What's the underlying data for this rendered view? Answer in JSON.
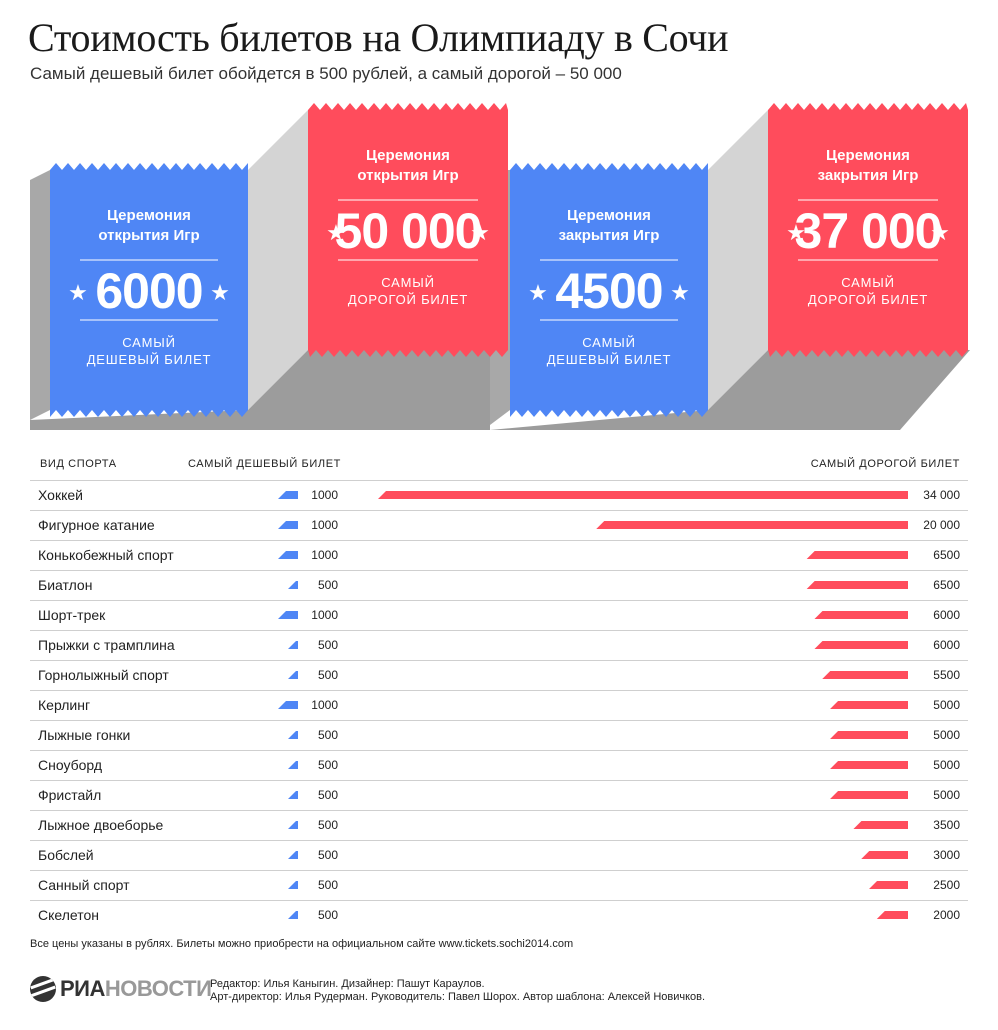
{
  "title": "Стоимость билетов на Олимпиаду в Сочи",
  "subtitle": "Самый дешевый билет обойдется в 500 рублей, а самый дорогой – 50 000",
  "colors": {
    "blue": "#4f86f5",
    "red": "#ff4c5c",
    "gray_light": "#d4d4d4",
    "gray_dark": "#a8a8a8"
  },
  "tickets": [
    {
      "caption_line1": "Церемония",
      "caption_line2": "открытия Игр",
      "value": "6000",
      "note_line1": "САМЫЙ",
      "note_line2": "ДЕШЕВЫЙ БИЛЕТ",
      "color": "blue"
    },
    {
      "caption_line1": "Церемония",
      "caption_line2": "открытия Игр",
      "value": "50 000",
      "note_line1": "САМЫЙ",
      "note_line2": "ДОРОГОЙ БИЛЕТ",
      "color": "red"
    },
    {
      "caption_line1": "Церемония",
      "caption_line2": "закрытия Игр",
      "value": "4500",
      "note_line1": "САМЫЙ",
      "note_line2": "ДЕШЕВЫЙ БИЛЕТ",
      "color": "blue"
    },
    {
      "caption_line1": "Церемония",
      "caption_line2": "закрытия Игр",
      "value": "37 000",
      "note_line1": "САМЫЙ",
      "note_line2": "ДОРОГОЙ БИЛЕТ",
      "color": "red"
    }
  ],
  "table_headers": {
    "sport": "ВИД СПОРТА",
    "cheapest": "САМЫЙ ДЕШЕВЫЙ БИЛЕТ",
    "priciest": "САМЫЙ ДОРОГОЙ БИЛЕТ"
  },
  "chart_data": {
    "type": "bar",
    "categories": [
      "Хоккей",
      "Фигурное катание",
      "Конькобежный спорт",
      "Биатлон",
      "Шорт-трек",
      "Прыжки с трамплина",
      "Горнолыжный спорт",
      "Керлинг",
      "Лыжные гонки",
      "Сноуборд",
      "Фристайл",
      "Лыжное двоеборье",
      "Бобслей",
      "Санный спорт",
      "Скелетон"
    ],
    "series": [
      {
        "name": "САМЫЙ ДЕШЕВЫЙ БИЛЕТ",
        "values": [
          1000,
          1000,
          1000,
          500,
          1000,
          500,
          500,
          1000,
          500,
          500,
          500,
          500,
          500,
          500,
          500
        ],
        "labels": [
          "1000",
          "1000",
          "1000",
          "500",
          "1000",
          "500",
          "500",
          "1000",
          "500",
          "500",
          "500",
          "500",
          "500",
          "500",
          "500"
        ]
      },
      {
        "name": "САМЫЙ ДОРОГОЙ БИЛЕТ",
        "values": [
          34000,
          20000,
          6500,
          6500,
          6000,
          6000,
          5500,
          5000,
          5000,
          5000,
          5000,
          3500,
          3000,
          2500,
          2000
        ],
        "labels": [
          "34 000",
          "20 000",
          "6500",
          "6500",
          "6000",
          "6000",
          "5500",
          "5000",
          "5000",
          "5000",
          "5000",
          "3500",
          "3000",
          "2500",
          "2000"
        ]
      }
    ]
  },
  "footnote": "Все цены указаны в рублях. Билеты можно приобрести на официальном сайте www.tickets.sochi2014.com",
  "logo": {
    "part1": "РИА",
    "part2": "НОВОСТИ"
  },
  "credits": {
    "line1": "Редактор: Илья Каныгин. Дизайнер: Пашут Караулов.",
    "line2": "Арт-директор: Илья Рудерман. Руководитель: Павел Шорох. Автор шаблона: Алексей Новичков."
  }
}
